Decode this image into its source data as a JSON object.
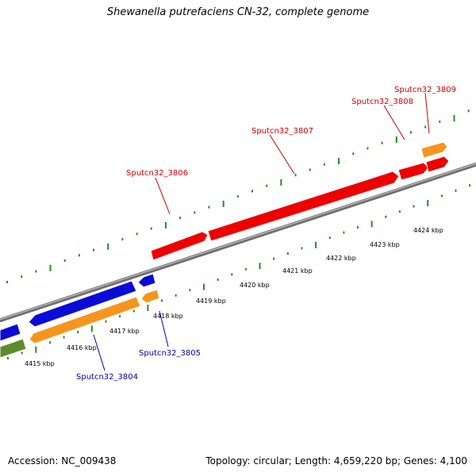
{
  "map": {
    "title": "Shewanella putrefaciens CN-32, complete genome",
    "accession": "Accession: NC_009438",
    "stats": "Topology: circular; Length: 4,659,220 bp; Genes: 4,100"
  },
  "colors": {
    "forward_gene": "#ee0000",
    "reverse_gene": "#0b0bd8",
    "orange_gene": "#f7941d",
    "olive_gene": "#5e8a2e",
    "backbone": "#8a8a8a",
    "tick": "#1f8f1f",
    "forward_label": "#cc0000",
    "reverse_label": "#0000aa"
  },
  "scale_labels": [
    "4415 kbp",
    "4416 kbp",
    "4417 kbp",
    "4418 kbp",
    "4419 kbp",
    "4420 kbp",
    "4421 kbp",
    "4422 kbp",
    "4423 kbp",
    "4424 kbp"
  ],
  "gene_labels": [
    {
      "text": "Sputcn32_3806",
      "strand": "forward"
    },
    {
      "text": "Sputcn32_3807",
      "strand": "forward"
    },
    {
      "text": "Sputcn32_3808",
      "strand": "forward"
    },
    {
      "text": "Sputcn32_3809",
      "strand": "forward"
    },
    {
      "text": "Sputcn32_3804",
      "strand": "reverse"
    },
    {
      "text": "Sputcn32_3805",
      "strand": "reverse"
    }
  ]
}
